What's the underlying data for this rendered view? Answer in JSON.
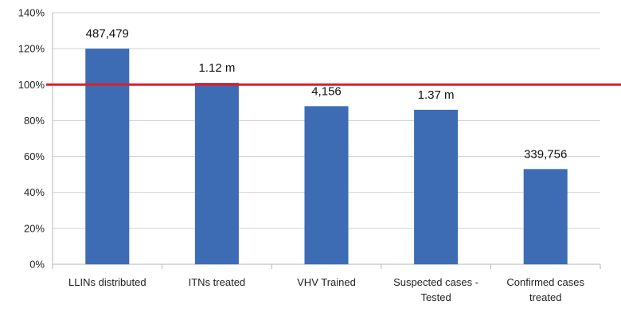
{
  "chart_data": {
    "type": "bar",
    "categories": [
      [
        "LLINs distributed"
      ],
      [
        "ITNs treated"
      ],
      [
        "VHV Trained"
      ],
      [
        "Suspected cases -",
        "Tested"
      ],
      [
        "Confirmed cases",
        "treated"
      ]
    ],
    "values": [
      120,
      101,
      88,
      86,
      53
    ],
    "data_labels": [
      "487,479",
      "1.12 m",
      "4,156",
      "1.37 m",
      "339,756"
    ],
    "y_ticks": [
      "0%",
      "20%",
      "40%",
      "60%",
      "80%",
      "100%",
      "120%",
      "140%"
    ],
    "ylim": [
      0,
      140
    ],
    "reference_line": {
      "value": 100,
      "color": "#d9202a"
    },
    "bar_color": "#3d6cb4",
    "grid": true,
    "grid_color": "#d0d0d0",
    "title": "",
    "xlabel": "",
    "ylabel": ""
  }
}
